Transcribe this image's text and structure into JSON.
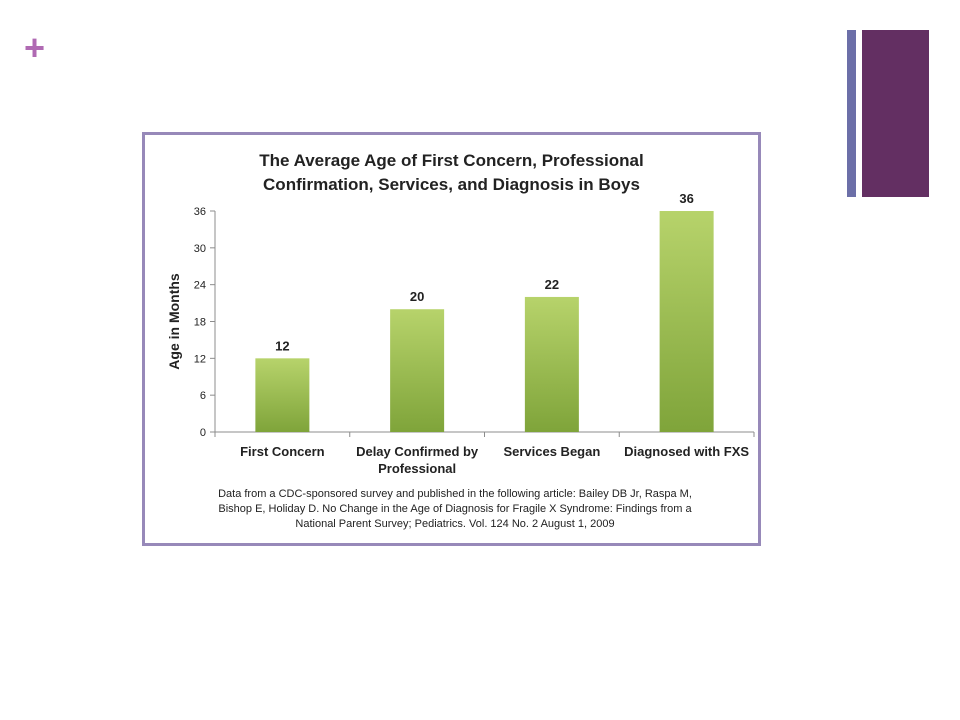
{
  "slide": {
    "plus_symbol": "+",
    "accent_colors": {
      "plus": "#b06ab3",
      "thin_bar": "#6c6fa8",
      "wide_bar": "#632f62",
      "frame": "#9789b9"
    }
  },
  "chart_data": {
    "type": "bar",
    "title_lines": [
      "The Average Age of First Concern, Professional",
      "Confirmation, Services, and Diagnosis in Boys"
    ],
    "title": "The Average Age of First Concern, Professional Confirmation, Services, and Diagnosis in Boys",
    "ylabel": "Age in Months",
    "xlabel": "",
    "categories": [
      "First Concern",
      "Delay Confirmed by Professional",
      "Services Began",
      "Diagnosed with FXS"
    ],
    "category_lines": [
      [
        "First Concern"
      ],
      [
        "Delay Confirmed by",
        "Professional"
      ],
      [
        "Services Began"
      ],
      [
        "Diagnosed with FXS"
      ]
    ],
    "values": [
      12,
      20,
      22,
      36
    ],
    "data_labels": [
      "12",
      "20",
      "22",
      "36"
    ],
    "ylim": [
      0,
      36
    ],
    "yticks": [
      0,
      6,
      12,
      18,
      24,
      30,
      36
    ],
    "bar_color_top": "#b7d36b",
    "bar_color_bottom": "#7fa43a",
    "grid": false,
    "legend": "none",
    "footnote": "Data from a CDC-sponsored survey and published in the following article: Bailey DB Jr, Raspa M, Bishop E, Holiday D. No Change in the Age of Diagnosis for Fragile X Syndrome: Findings from a National Parent Survey; Pediatrics. Vol. 124 No. 2 August 1, 2009"
  }
}
